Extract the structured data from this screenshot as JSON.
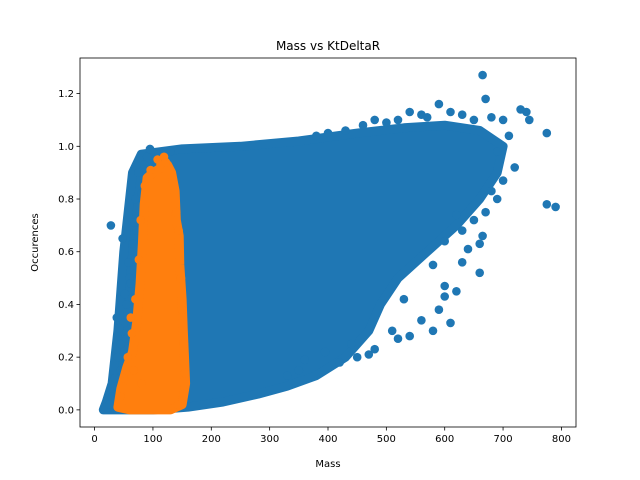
{
  "chart_data": {
    "type": "scatter",
    "title": "Mass vs KtDeltaR",
    "xlabel": "Mass",
    "ylabel": "Occurences",
    "xlim": [
      -25,
      825
    ],
    "ylim": [
      -0.065,
      1.335
    ],
    "xticks": [
      0,
      100,
      200,
      300,
      400,
      500,
      600,
      700,
      800
    ],
    "yticks": [
      0.0,
      0.2,
      0.4,
      0.6,
      0.8,
      1.0,
      1.2
    ],
    "xtick_labels": [
      "0",
      "100",
      "200",
      "300",
      "400",
      "500",
      "600",
      "700",
      "800"
    ],
    "ytick_labels": [
      "0.0",
      "0.2",
      "0.4",
      "0.6",
      "0.8",
      "1.0",
      "1.2"
    ],
    "grid": false,
    "legend": "none",
    "series": [
      {
        "color": "#1f77b4",
        "dense_region": [
          [
            15,
            0.0
          ],
          [
            20,
            0.03
          ],
          [
            30,
            0.1
          ],
          [
            40,
            0.3
          ],
          [
            50,
            0.6
          ],
          [
            65,
            0.9
          ],
          [
            80,
            0.97
          ],
          [
            150,
            0.99
          ],
          [
            250,
            1.0
          ],
          [
            350,
            1.02
          ],
          [
            450,
            1.05
          ],
          [
            530,
            1.07
          ],
          [
            600,
            1.08
          ],
          [
            660,
            1.06
          ],
          [
            700,
            1.0
          ],
          [
            690,
            0.9
          ],
          [
            660,
            0.8
          ],
          [
            620,
            0.7
          ],
          [
            570,
            0.6
          ],
          [
            520,
            0.5
          ],
          [
            490,
            0.4
          ],
          [
            470,
            0.3
          ],
          [
            430,
            0.2
          ],
          [
            380,
            0.13
          ],
          [
            330,
            0.09
          ],
          [
            280,
            0.06
          ],
          [
            220,
            0.03
          ],
          [
            160,
            0.01
          ],
          [
            100,
            0.0
          ],
          [
            50,
            0.0
          ],
          [
            15,
            0.0
          ]
        ],
        "points": [
          [
            665,
            1.27
          ],
          [
            590,
            1.16
          ],
          [
            670,
            1.18
          ],
          [
            730,
            1.14
          ],
          [
            740,
            1.13
          ],
          [
            775,
            1.05
          ],
          [
            745,
            1.1
          ],
          [
            700,
            1.1
          ],
          [
            710,
            1.04
          ],
          [
            720,
            0.92
          ],
          [
            690,
            0.98
          ],
          [
            700,
            0.87
          ],
          [
            680,
            0.83
          ],
          [
            775,
            0.78
          ],
          [
            790,
            0.77
          ],
          [
            690,
            0.8
          ],
          [
            660,
            0.63
          ],
          [
            665,
            0.66
          ],
          [
            660,
            0.52
          ],
          [
            640,
            0.61
          ],
          [
            630,
            0.56
          ],
          [
            620,
            0.45
          ],
          [
            600,
            0.47
          ],
          [
            590,
            0.38
          ],
          [
            610,
            0.33
          ],
          [
            580,
            0.3
          ],
          [
            560,
            0.34
          ],
          [
            540,
            0.28
          ],
          [
            520,
            0.27
          ],
          [
            510,
            0.3
          ],
          [
            480,
            0.23
          ],
          [
            450,
            0.2
          ],
          [
            420,
            0.18
          ],
          [
            395,
            0.22
          ],
          [
            360,
            0.19
          ],
          [
            350,
            0.15
          ],
          [
            330,
            0.13
          ],
          [
            470,
            0.21
          ],
          [
            440,
            0.25
          ],
          [
            600,
            0.64
          ],
          [
            630,
            0.68
          ],
          [
            670,
            0.75
          ],
          [
            620,
            0.74
          ],
          [
            650,
            0.72
          ],
          [
            560,
            1.12
          ],
          [
            520,
            1.1
          ],
          [
            500,
            1.09
          ],
          [
            480,
            1.1
          ],
          [
            460,
            1.08
          ],
          [
            430,
            1.06
          ],
          [
            400,
            1.05
          ],
          [
            380,
            1.04
          ],
          [
            540,
            1.13
          ],
          [
            570,
            1.11
          ],
          [
            610,
            1.13
          ],
          [
            630,
            1.12
          ],
          [
            650,
            1.1
          ],
          [
            680,
            1.11
          ],
          [
            600,
            0.43
          ],
          [
            580,
            0.55
          ],
          [
            530,
            0.42
          ],
          [
            25,
            0.02
          ],
          [
            30,
            0.05
          ],
          [
            35,
            0.12
          ],
          [
            40,
            0.2
          ],
          [
            45,
            0.25
          ],
          [
            50,
            0.33
          ],
          [
            55,
            0.4
          ],
          [
            60,
            0.5
          ],
          [
            65,
            0.63
          ],
          [
            70,
            0.8
          ],
          [
            75,
            0.9
          ],
          [
            85,
            0.93
          ],
          [
            90,
            0.96
          ],
          [
            28,
            0.7
          ],
          [
            38,
            0.35
          ],
          [
            48,
            0.65
          ],
          [
            58,
            0.56
          ],
          [
            62,
            0.48
          ],
          [
            55,
            0.27
          ],
          [
            45,
            0.15
          ],
          [
            42,
            0.31
          ],
          [
            52,
            0.44
          ],
          [
            68,
            0.71
          ],
          [
            72,
            0.68
          ],
          [
            80,
            0.82
          ],
          [
            110,
            0.97
          ],
          [
            130,
            0.98
          ],
          [
            95,
            0.99
          ]
        ]
      },
      {
        "color": "#ff7f0e",
        "dense_region": [
          [
            40,
            0.01
          ],
          [
            45,
            0.08
          ],
          [
            55,
            0.16
          ],
          [
            65,
            0.22
          ],
          [
            72,
            0.33
          ],
          [
            78,
            0.48
          ],
          [
            82,
            0.63
          ],
          [
            85,
            0.78
          ],
          [
            90,
            0.88
          ],
          [
            100,
            0.9
          ],
          [
            115,
            0.92
          ],
          [
            125,
            0.93
          ],
          [
            132,
            0.9
          ],
          [
            138,
            0.83
          ],
          [
            140,
            0.72
          ],
          [
            145,
            0.66
          ],
          [
            146,
            0.55
          ],
          [
            150,
            0.42
          ],
          [
            152,
            0.3
          ],
          [
            154,
            0.2
          ],
          [
            156,
            0.1
          ],
          [
            150,
            0.02
          ],
          [
            130,
            0.0
          ],
          [
            90,
            0.0
          ],
          [
            60,
            0.0
          ],
          [
            40,
            0.01
          ]
        ],
        "points": [
          [
            108,
            0.95
          ],
          [
            113,
            0.93
          ],
          [
            122,
            0.94
          ],
          [
            119,
            0.96
          ],
          [
            96,
            0.91
          ],
          [
            86,
            0.85
          ],
          [
            79,
            0.72
          ],
          [
            76,
            0.57
          ],
          [
            70,
            0.42
          ],
          [
            64,
            0.29
          ],
          [
            57,
            0.2
          ],
          [
            50,
            0.12
          ],
          [
            44,
            0.05
          ],
          [
            140,
            0.75
          ],
          [
            144,
            0.68
          ],
          [
            148,
            0.5
          ],
          [
            150,
            0.38
          ],
          [
            153,
            0.25
          ],
          [
            155,
            0.14
          ],
          [
            152,
            0.06
          ],
          [
            143,
            0.02
          ],
          [
            62,
            0.35
          ],
          [
            67,
            0.15
          ],
          [
            80,
            0.1
          ]
        ]
      }
    ]
  }
}
